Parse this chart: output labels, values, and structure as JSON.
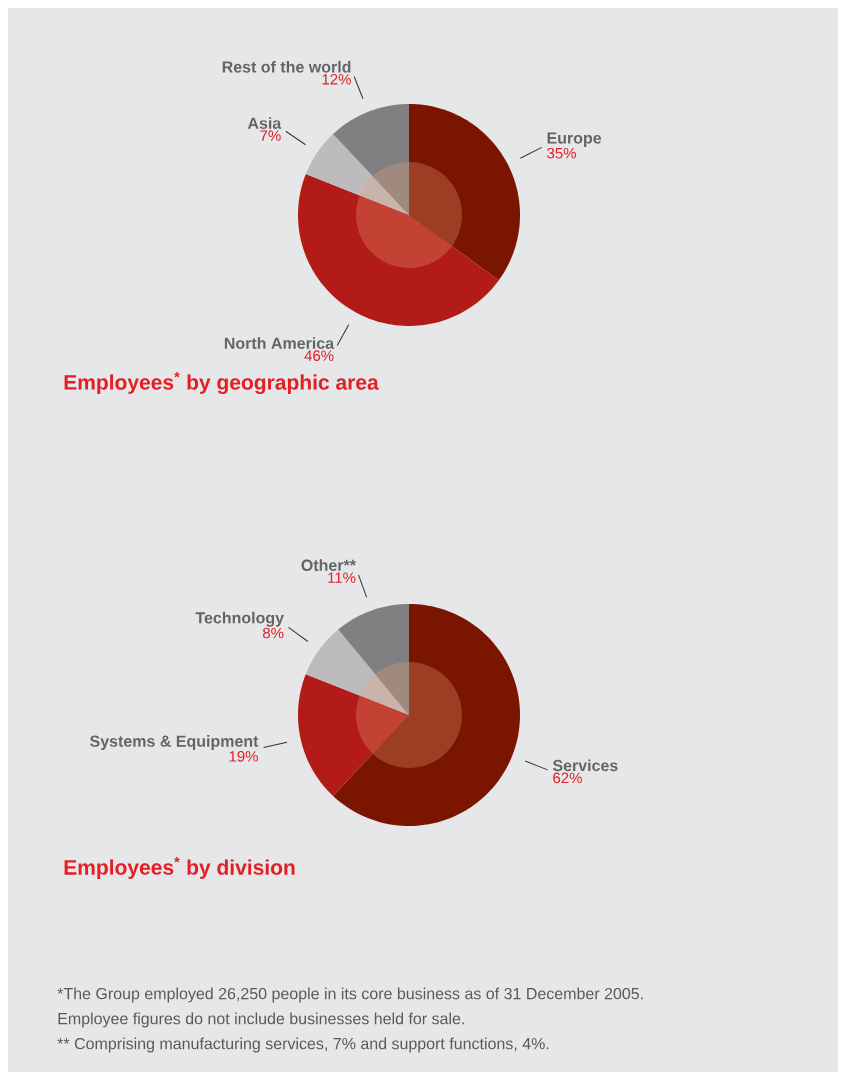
{
  "chart_data": [
    {
      "type": "pie",
      "title": "Employees$^{*}$ by geographic area",
      "categories": [
        "Europe",
        "North America",
        "Asia",
        "Rest of the world"
      ],
      "values": [
        35,
        46,
        7,
        12
      ],
      "value_labels": [
        "35%",
        "46%",
        "7%",
        "12%"
      ],
      "colors": [
        "#7a1500",
        "#b31b18",
        "#bcbcbe",
        "#808083"
      ]
    },
    {
      "type": "pie",
      "title": "Employees$^{*}$ by division",
      "categories": [
        "Services",
        "Systems & Equipment",
        "Technology",
        "Other**"
      ],
      "values": [
        62,
        19,
        8,
        11
      ],
      "value_labels": [
        "62%",
        "19%",
        "8%",
        "11%"
      ],
      "colors": [
        "#7a1500",
        "#b31b18",
        "#bcbcbe",
        "#808083"
      ],
      "annotations": [
        "*The Group employed 26,250 people in its core business as of 31 December 2005.",
        "Employee figures do not include businesses held for sale.",
        "** Comprising manufacturing services, 7% and support functions, 4%."
      ]
    }
  ]
}
